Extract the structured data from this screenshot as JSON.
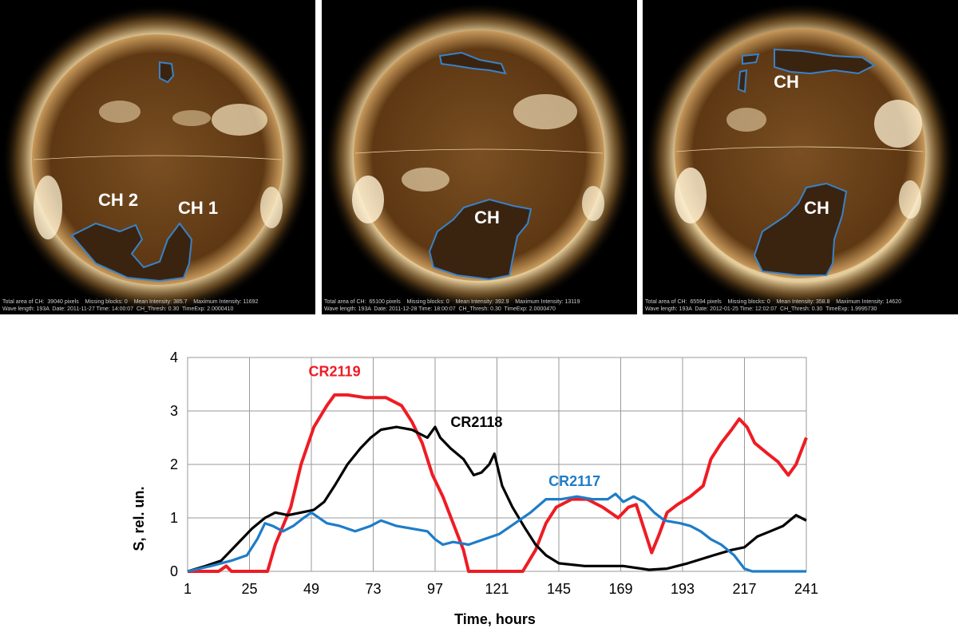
{
  "panels": [
    {
      "labels": [
        "CH 2",
        "CH 1"
      ],
      "caption_line1": "Total area of CH:  39040 pixels    Missing blocks: 0    Mean Intensity: 385.7    Maximum Intensity: 11692",
      "caption_line2": "Wave length: 193A  Date: 2011-11-27 Time: 14:00:07  CH_Thresh: 0.30  TimeExp: 2.0000410"
    },
    {
      "labels": [
        "CH"
      ],
      "caption_line1": "Total area of CH:  65100 pixels    Missing blocks: 0    Mean Intensity: 392.9    Maximum Intensity: 13119",
      "caption_line2": "Wave length: 193A  Date: 2011-12-28 Time: 18:00:07  CH_Thresh: 0.30  TimeExp: 2.0000470"
    },
    {
      "labels": [
        "CH",
        "CH"
      ],
      "caption_line1": "Total area of CH:  65594 pixels    Missing blocks: 0    Mean Intensity: 358.8    Maximum Intensity: 14620",
      "caption_line2": "Wave length: 193A  Date: 2012-01-25 Time: 12:02:07  CH_Thresh: 0.30  TimeExp: 1.9995730"
    }
  ],
  "colors": {
    "cr2119": "#ee1c24",
    "cr2118": "#000000",
    "cr2117": "#1e7cc8",
    "ch_contour": "#3a82c8"
  },
  "chart_data": {
    "type": "line",
    "xlabel": "Time, hours",
    "ylabel": "S,  rel. un.",
    "xlim": [
      1,
      241
    ],
    "ylim": [
      0,
      4
    ],
    "xticks": [
      1,
      25,
      49,
      73,
      97,
      121,
      145,
      169,
      193,
      217,
      241
    ],
    "yticks": [
      0,
      1,
      2,
      3,
      4
    ],
    "grid": true,
    "series": [
      {
        "name": "CR2119",
        "color": "#ee1c24",
        "points": [
          [
            1,
            0
          ],
          [
            13,
            0
          ],
          [
            16,
            0.1
          ],
          [
            18,
            0
          ],
          [
            32,
            0
          ],
          [
            35,
            0.5
          ],
          [
            41,
            1.2
          ],
          [
            45,
            2.0
          ],
          [
            50,
            2.7
          ],
          [
            55,
            3.1
          ],
          [
            58,
            3.3
          ],
          [
            63,
            3.3
          ],
          [
            70,
            3.25
          ],
          [
            78,
            3.25
          ],
          [
            84,
            3.1
          ],
          [
            88,
            2.8
          ],
          [
            92,
            2.4
          ],
          [
            96,
            1.8
          ],
          [
            100,
            1.4
          ],
          [
            104,
            0.9
          ],
          [
            108,
            0.4
          ],
          [
            110,
            0
          ],
          [
            131,
            0
          ],
          [
            136,
            0.4
          ],
          [
            140,
            0.9
          ],
          [
            144,
            1.2
          ],
          [
            150,
            1.35
          ],
          [
            156,
            1.35
          ],
          [
            162,
            1.2
          ],
          [
            168,
            1.0
          ],
          [
            172,
            1.2
          ],
          [
            175,
            1.25
          ],
          [
            178,
            0.8
          ],
          [
            181,
            0.35
          ],
          [
            184,
            0.7
          ],
          [
            187,
            1.1
          ],
          [
            191,
            1.25
          ],
          [
            196,
            1.4
          ],
          [
            201,
            1.6
          ],
          [
            204,
            2.1
          ],
          [
            208,
            2.4
          ],
          [
            212,
            2.65
          ],
          [
            215,
            2.85
          ],
          [
            218,
            2.7
          ],
          [
            221,
            2.4
          ],
          [
            226,
            2.2
          ],
          [
            230,
            2.05
          ],
          [
            234,
            1.8
          ],
          [
            237,
            2.0
          ],
          [
            241,
            2.5
          ]
        ]
      },
      {
        "name": "CR2118",
        "color": "#000000",
        "points": [
          [
            1,
            0
          ],
          [
            8,
            0.1
          ],
          [
            14,
            0.2
          ],
          [
            20,
            0.5
          ],
          [
            26,
            0.8
          ],
          [
            31,
            1.0
          ],
          [
            35,
            1.1
          ],
          [
            40,
            1.05
          ],
          [
            45,
            1.1
          ],
          [
            50,
            1.15
          ],
          [
            54,
            1.3
          ],
          [
            58,
            1.6
          ],
          [
            63,
            2.0
          ],
          [
            68,
            2.3
          ],
          [
            72,
            2.5
          ],
          [
            76,
            2.65
          ],
          [
            82,
            2.7
          ],
          [
            88,
            2.65
          ],
          [
            94,
            2.5
          ],
          [
            97,
            2.7
          ],
          [
            99,
            2.5
          ],
          [
            103,
            2.3
          ],
          [
            108,
            2.1
          ],
          [
            112,
            1.8
          ],
          [
            115,
            1.85
          ],
          [
            118,
            2.0
          ],
          [
            120,
            2.2
          ],
          [
            123,
            1.6
          ],
          [
            127,
            1.2
          ],
          [
            132,
            0.8
          ],
          [
            136,
            0.5
          ],
          [
            140,
            0.3
          ],
          [
            145,
            0.15
          ],
          [
            155,
            0.1
          ],
          [
            170,
            0.1
          ],
          [
            180,
            0.03
          ],
          [
            187,
            0.05
          ],
          [
            195,
            0.15
          ],
          [
            205,
            0.3
          ],
          [
            212,
            0.4
          ],
          [
            217,
            0.45
          ],
          [
            222,
            0.65
          ],
          [
            227,
            0.75
          ],
          [
            232,
            0.85
          ],
          [
            237,
            1.05
          ],
          [
            241,
            0.95
          ]
        ]
      },
      {
        "name": "CR2117",
        "color": "#1e7cc8",
        "points": [
          [
            1,
            0
          ],
          [
            10,
            0.1
          ],
          [
            18,
            0.2
          ],
          [
            24,
            0.3
          ],
          [
            28,
            0.6
          ],
          [
            31,
            0.9
          ],
          [
            34,
            0.85
          ],
          [
            38,
            0.75
          ],
          [
            42,
            0.85
          ],
          [
            46,
            1.0
          ],
          [
            49,
            1.1
          ],
          [
            55,
            0.9
          ],
          [
            60,
            0.85
          ],
          [
            66,
            0.75
          ],
          [
            72,
            0.85
          ],
          [
            76,
            0.95
          ],
          [
            82,
            0.85
          ],
          [
            88,
            0.8
          ],
          [
            94,
            0.75
          ],
          [
            97,
            0.6
          ],
          [
            100,
            0.5
          ],
          [
            104,
            0.55
          ],
          [
            110,
            0.5
          ],
          [
            116,
            0.6
          ],
          [
            122,
            0.7
          ],
          [
            128,
            0.9
          ],
          [
            134,
            1.1
          ],
          [
            140,
            1.35
          ],
          [
            146,
            1.35
          ],
          [
            152,
            1.4
          ],
          [
            158,
            1.35
          ],
          [
            164,
            1.35
          ],
          [
            167,
            1.45
          ],
          [
            170,
            1.3
          ],
          [
            174,
            1.4
          ],
          [
            178,
            1.3
          ],
          [
            182,
            1.1
          ],
          [
            186,
            0.95
          ],
          [
            192,
            0.9
          ],
          [
            196,
            0.85
          ],
          [
            200,
            0.75
          ],
          [
            204,
            0.6
          ],
          [
            208,
            0.5
          ],
          [
            213,
            0.3
          ],
          [
            217,
            0.05
          ],
          [
            220,
            0
          ],
          [
            241,
            0
          ]
        ]
      }
    ]
  }
}
